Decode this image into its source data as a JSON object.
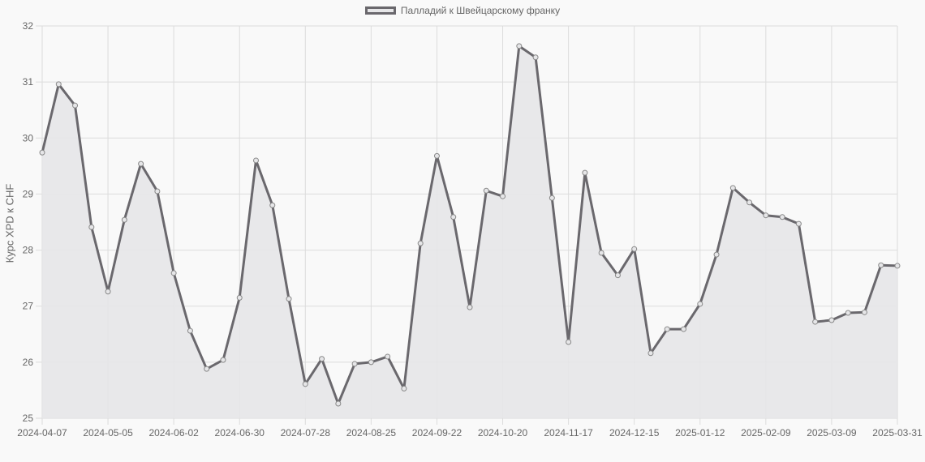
{
  "legend": {
    "label": "Палладий к Швейцарскому франку",
    "line_color": "#6a686d",
    "fill_color": "#e6e6e8"
  },
  "chart_data": {
    "type": "area",
    "title": "",
    "xlabel": "",
    "ylabel": "Курс XPD к CHF",
    "ylim": [
      25,
      32
    ],
    "yticks": [
      25,
      26,
      27,
      28,
      29,
      30,
      31,
      32
    ],
    "grid": true,
    "legend_position": "top",
    "xtick_labels": [
      "2024-04-07",
      "2024-05-05",
      "2024-06-02",
      "2024-06-30",
      "2024-07-28",
      "2024-08-25",
      "2024-09-22",
      "2024-10-20",
      "2024-11-17",
      "2024-12-15",
      "2025-01-12",
      "2025-02-09",
      "2025-03-09",
      "2025-03-31"
    ],
    "series": [
      {
        "name": "Палладий к Швейцарскому франку",
        "x": [
          "2024-04-07",
          "2024-04-14",
          "2024-04-21",
          "2024-04-28",
          "2024-05-05",
          "2024-05-12",
          "2024-05-19",
          "2024-05-26",
          "2024-06-02",
          "2024-06-09",
          "2024-06-16",
          "2024-06-23",
          "2024-06-30",
          "2024-07-07",
          "2024-07-14",
          "2024-07-21",
          "2024-07-28",
          "2024-08-04",
          "2024-08-11",
          "2024-08-18",
          "2024-08-25",
          "2024-09-01",
          "2024-09-08",
          "2024-09-15",
          "2024-09-22",
          "2024-09-29",
          "2024-10-06",
          "2024-10-13",
          "2024-10-20",
          "2024-10-27",
          "2024-11-03",
          "2024-11-10",
          "2024-11-17",
          "2024-11-24",
          "2024-12-01",
          "2024-12-08",
          "2024-12-15",
          "2024-12-22",
          "2024-12-29",
          "2025-01-05",
          "2025-01-12",
          "2025-01-19",
          "2025-01-26",
          "2025-02-02",
          "2025-02-09",
          "2025-02-16",
          "2025-02-23",
          "2025-03-02",
          "2025-03-09",
          "2025-03-16",
          "2025-03-23",
          "2025-03-30",
          "2025-03-31"
        ],
        "values": [
          29.74,
          30.96,
          30.58,
          28.41,
          27.26,
          28.54,
          29.54,
          29.05,
          27.59,
          26.56,
          25.88,
          26.04,
          27.15,
          29.6,
          28.8,
          27.13,
          25.61,
          26.06,
          25.26,
          25.97,
          26.0,
          26.1,
          25.53,
          28.12,
          29.68,
          28.59,
          26.98,
          29.06,
          28.96,
          31.64,
          31.44,
          28.93,
          26.36,
          29.38,
          27.95,
          27.55,
          28.02,
          26.16,
          26.59,
          26.59,
          27.04,
          27.92,
          29.11,
          28.85,
          28.62,
          28.59,
          28.47,
          26.72,
          26.75,
          26.88,
          26.89,
          27.73,
          27.72
        ]
      }
    ]
  }
}
